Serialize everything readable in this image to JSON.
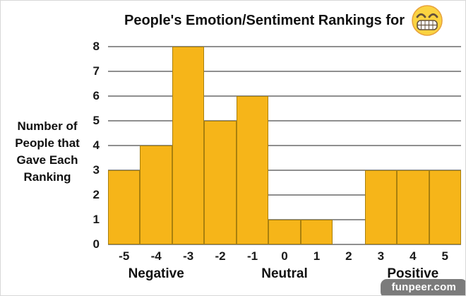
{
  "title": {
    "text": "People's Emotion/Sentiment Rankings for",
    "emoji": "beaming-face-with-smiling-eyes"
  },
  "y_axis_title": "Number of\nPeople that\nGave Each\nRanking",
  "watermark": "funpeer.com",
  "colors": {
    "bar_fill": "#F6B519",
    "bar_border": "#A9800E",
    "gridline": "#8F8F8F",
    "watermark_bg": "#7B7B7B",
    "emoji_face": "#FBD341",
    "emoji_outline": "#E8A33D"
  },
  "chart_data": {
    "type": "bar",
    "title": "People's Emotion/Sentiment Rankings for 😁",
    "categories": [
      "-5",
      "-4",
      "-3",
      "-2",
      "-1",
      "0",
      "1",
      "2",
      "3",
      "4",
      "5"
    ],
    "values": [
      3,
      4,
      8,
      5,
      6,
      1,
      1,
      0,
      3,
      3,
      3
    ],
    "group_labels": [
      {
        "label": "Negative",
        "anchor": "-4"
      },
      {
        "label": "Neutral",
        "anchor": "0"
      },
      {
        "label": "Positive",
        "anchor": "4"
      }
    ],
    "ylabel": "Number of People that Gave Each Ranking",
    "xlabel": "",
    "ylim": [
      0,
      8
    ],
    "ytick_step": 1,
    "grid": true,
    "legend": false
  }
}
